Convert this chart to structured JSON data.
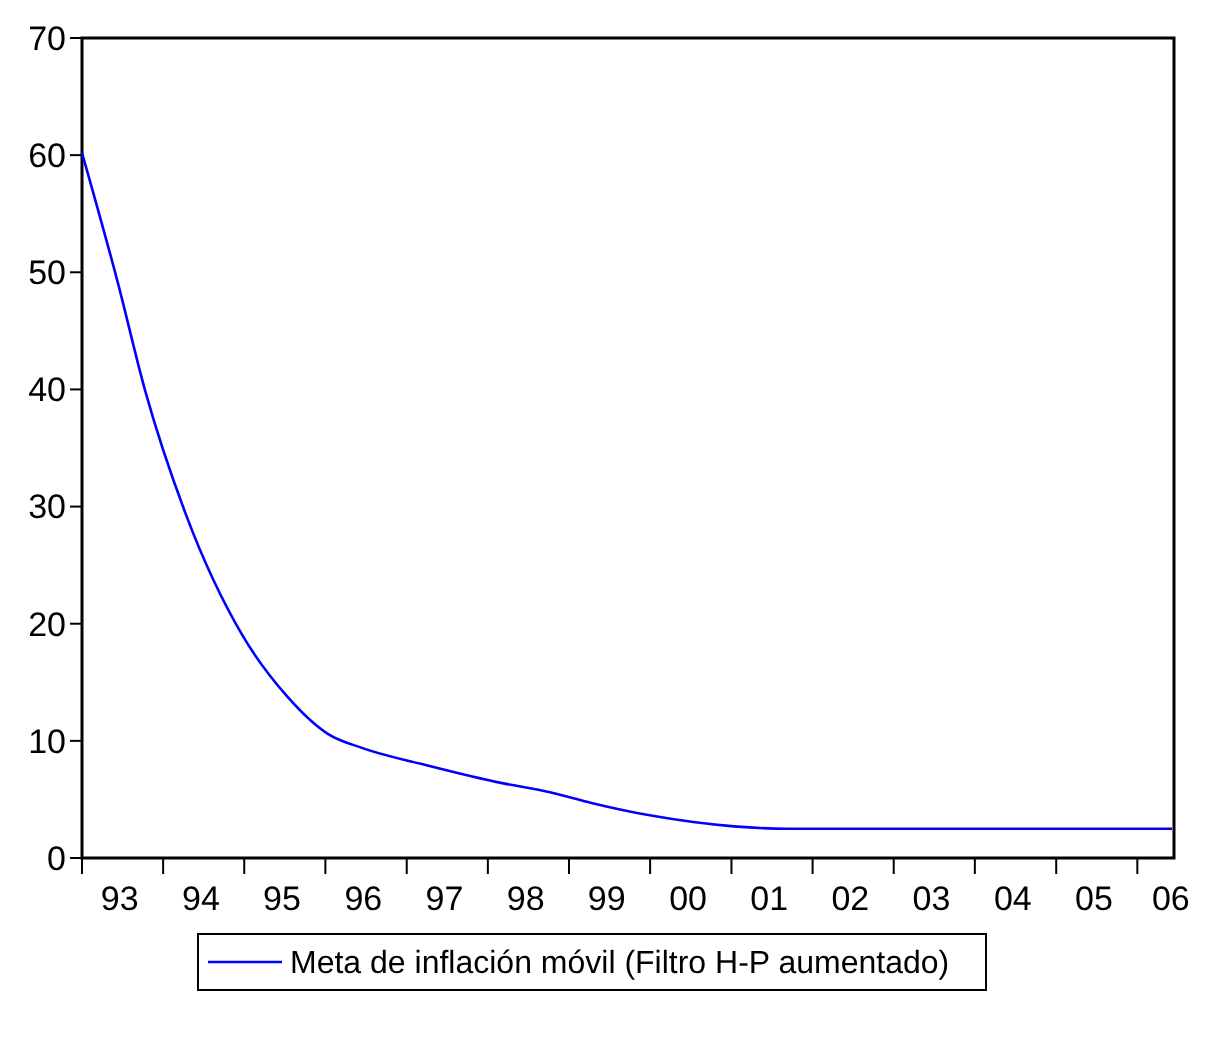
{
  "chart_data": {
    "type": "line",
    "x": [
      "1993-01-01",
      "1993-06-10",
      "1993-10-12",
      "1994-04-12",
      "1994-12-24",
      "1995-07-13",
      "1996-01-12",
      "1996-06-13",
      "1997-03-14",
      "1998-02-06",
      "1998-10-12",
      "1999-04-12",
      "2000-01-12",
      "2001-01-12",
      "2001-09-09",
      "2006-06-06"
    ],
    "series": [
      {
        "name": "Meta de inflación móvil (Filtro H-P aumentado)",
        "color": "#0000ff",
        "values": [
          60.2,
          49.2,
          39.9,
          29.4,
          19.0,
          13.8,
          10.6,
          9.4,
          8.0,
          6.5,
          5.6,
          4.7,
          3.6,
          2.7,
          2.5,
          2.5
        ]
      }
    ],
    "xlim": [
      "1993-01-01",
      "2006-06-15"
    ],
    "xticks": [
      {
        "value": "1993-01-01",
        "label": null
      },
      {
        "value": "1994-01-01",
        "label": null
      },
      {
        "value": "1995-01-01",
        "label": null
      },
      {
        "value": "1996-01-01",
        "label": null
      },
      {
        "value": "1997-01-01",
        "label": null
      },
      {
        "value": "1998-01-01",
        "label": null
      },
      {
        "value": "1999-01-01",
        "label": null
      },
      {
        "value": "2000-01-01",
        "label": null
      },
      {
        "value": "2001-01-01",
        "label": null
      },
      {
        "value": "2002-01-01",
        "label": null
      },
      {
        "value": "2003-01-01",
        "label": null
      },
      {
        "value": "2004-01-01",
        "label": null
      },
      {
        "value": "2005-01-01",
        "label": null
      },
      {
        "value": "2006-01-01",
        "label": null
      },
      {
        "value": "1993-06-20",
        "label": "93"
      },
      {
        "value": "1994-06-20",
        "label": "94"
      },
      {
        "value": "1995-06-20",
        "label": "95"
      },
      {
        "value": "1996-06-20",
        "label": "96"
      },
      {
        "value": "1997-06-20",
        "label": "97"
      },
      {
        "value": "1998-06-20",
        "label": "98"
      },
      {
        "value": "1999-06-20",
        "label": "99"
      },
      {
        "value": "2000-06-20",
        "label": "00"
      },
      {
        "value": "2001-06-20",
        "label": "01"
      },
      {
        "value": "2002-06-20",
        "label": "02"
      },
      {
        "value": "2003-06-20",
        "label": "03"
      },
      {
        "value": "2004-06-20",
        "label": "04"
      },
      {
        "value": "2005-06-20",
        "label": "05"
      },
      {
        "value": "2006-06-01",
        "label": "06"
      }
    ],
    "ylim": [
      0,
      70
    ],
    "yticks": [
      0,
      10,
      20,
      30,
      40,
      50,
      60,
      70
    ],
    "legend": "bottom",
    "grid": false
  }
}
